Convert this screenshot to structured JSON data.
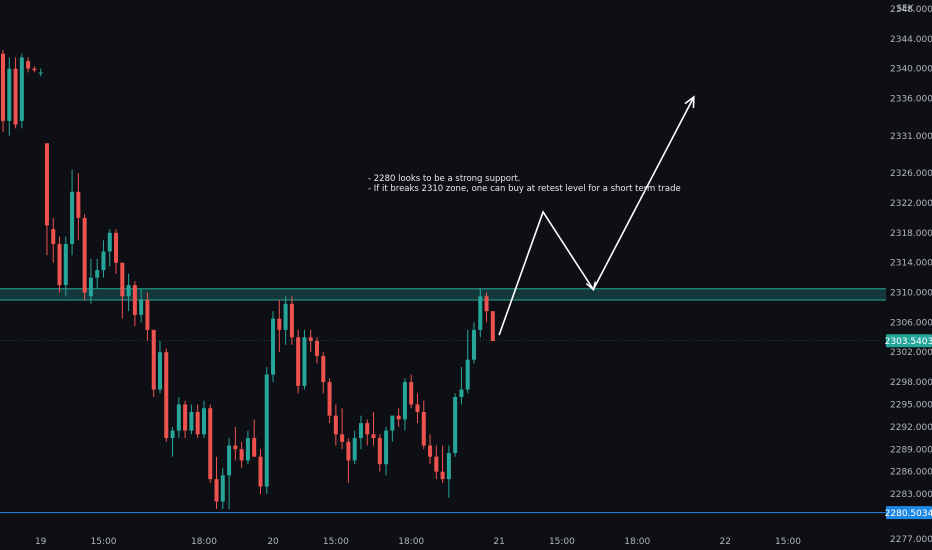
{
  "chart_data": {
    "type": "candlestick",
    "currency": "SEK",
    "colors": {
      "background": "#0d0f14",
      "up": "#26a69a",
      "down": "#ef5350",
      "zone": "#26a69a",
      "support_line": "#1e88e5",
      "annotation": "#ffffff"
    },
    "y_axis": {
      "range": [
        2275.5,
        2349.2
      ],
      "ticks": [
        "2348.0000",
        "2344.0000",
        "2340.0000",
        "2336.0000",
        "2331.0000",
        "2326.0000",
        "2322.0000",
        "2318.0000",
        "2314.0000",
        "2310.0000",
        "2306.0000",
        "2302.0000",
        "2298.0000",
        "2295.0000",
        "2292.0000",
        "2289.0000",
        "2286.0000",
        "2283.0000",
        "2277.0000"
      ]
    },
    "x_axis": {
      "ticks": [
        {
          "label": "19",
          "bar": 6
        },
        {
          "label": "15:00",
          "bar": 16
        },
        {
          "label": "18:00",
          "bar": 32
        },
        {
          "label": "20",
          "bar": 43
        },
        {
          "label": "15:00",
          "bar": 53
        },
        {
          "label": "18:00",
          "bar": 65
        },
        {
          "label": "21",
          "bar": 79
        },
        {
          "label": "15:00",
          "bar": 89
        },
        {
          "label": "18:00",
          "bar": 101
        },
        {
          "label": "22",
          "bar": 115
        },
        {
          "label": "15:00",
          "bar": 125
        }
      ]
    },
    "price_tags": [
      {
        "value": 2303.5403,
        "label": "2303.5403",
        "color": "#26a69a"
      },
      {
        "value": 2280.5034,
        "label": "2280.5034",
        "color": "#1e88e5"
      }
    ],
    "support_zone": {
      "low": 2309.0,
      "high": 2310.5
    },
    "support_line": 2280.5034,
    "annotation": {
      "lines": [
        "- 2280 looks to be a strong support.",
        "- If it breaks 2310 zone, one can buy at retest level for a short term trade"
      ]
    },
    "projection": [
      {
        "bar": 79,
        "price": 2304.3
      },
      {
        "bar": 86,
        "price": 2320.8
      },
      {
        "bar": 94,
        "price": 2310.4
      },
      {
        "bar": 110,
        "price": 2336.2
      }
    ],
    "candles": [
      [
        2342.0,
        2342.5,
        2331.5,
        2333.0
      ],
      [
        2333.0,
        2341.5,
        2331.0,
        2340.0
      ],
      [
        2340.0,
        2341.5,
        2332.0,
        2332.5
      ],
      [
        2333.0,
        2342.0,
        2332.0,
        2341.5
      ],
      [
        2341.0,
        2341.5,
        2339.5,
        2340.0
      ],
      [
        2340.0,
        2340.3,
        2339.5,
        2339.8
      ],
      [
        2339.5,
        2340.0,
        2339.0,
        2339.5
      ],
      [
        2330.0,
        2330.0,
        2315.0,
        2319.0
      ],
      [
        2318.5,
        2320.0,
        2314.0,
        2316.5
      ],
      [
        2316.5,
        2317.5,
        2310.0,
        2311.0
      ],
      [
        2311.0,
        2317.5,
        2309.5,
        2316.5
      ],
      [
        2316.5,
        2326.5,
        2315.0,
        2323.5
      ],
      [
        2323.5,
        2326.0,
        2317.0,
        2320.0
      ],
      [
        2320.0,
        2320.5,
        2309.0,
        2310.0
      ],
      [
        2309.5,
        2314.5,
        2308.5,
        2312.0
      ],
      [
        2312.0,
        2314.5,
        2310.5,
        2313.0
      ],
      [
        2313.0,
        2317.0,
        2312.0,
        2315.5
      ],
      [
        2315.5,
        2318.5,
        2313.5,
        2318.0
      ],
      [
        2318.0,
        2318.5,
        2312.5,
        2314.0
      ],
      [
        2314.0,
        2314.0,
        2306.5,
        2309.5
      ],
      [
        2309.5,
        2312.5,
        2307.5,
        2311.0
      ],
      [
        2311.0,
        2311.5,
        2305.5,
        2307.0
      ],
      [
        2307.0,
        2310.5,
        2306.0,
        2309.0
      ],
      [
        2309.0,
        2310.0,
        2303.5,
        2305.0
      ],
      [
        2305.0,
        2305.0,
        2296.0,
        2297.0
      ],
      [
        2297.0,
        2303.5,
        2296.5,
        2302.0
      ],
      [
        2302.0,
        2302.5,
        2290.0,
        2290.5
      ],
      [
        2290.5,
        2292.0,
        2288.0,
        2291.5
      ],
      [
        2291.5,
        2296.0,
        2290.5,
        2295.0
      ],
      [
        2295.0,
        2295.5,
        2290.5,
        2291.5
      ],
      [
        2291.5,
        2295.0,
        2291.0,
        2294.0
      ],
      [
        2294.0,
        2295.0,
        2290.5,
        2291.0
      ],
      [
        2291.0,
        2295.5,
        2290.5,
        2294.5
      ],
      [
        2294.5,
        2295.0,
        2284.5,
        2285.0
      ],
      [
        2285.0,
        2288.0,
        2281.0,
        2282.0
      ],
      [
        2282.0,
        2286.5,
        2281.0,
        2285.5
      ],
      [
        2285.5,
        2290.5,
        2281.0,
        2289.5
      ],
      [
        2289.5,
        2292.0,
        2287.5,
        2289.0
      ],
      [
        2289.0,
        2290.0,
        2286.5,
        2287.5
      ],
      [
        2287.5,
        2291.5,
        2287.0,
        2290.5
      ],
      [
        2290.5,
        2293.0,
        2288.0,
        2288.0
      ],
      [
        2288.0,
        2289.0,
        2283.0,
        2284.0
      ],
      [
        2284.0,
        2300.0,
        2283.0,
        2299.0
      ],
      [
        2299.0,
        2307.5,
        2298.0,
        2306.5
      ],
      [
        2306.5,
        2309.0,
        2302.0,
        2305.0
      ],
      [
        2305.0,
        2309.5,
        2303.0,
        2308.5
      ],
      [
        2308.5,
        2309.5,
        2303.0,
        2304.0
      ],
      [
        2304.0,
        2305.0,
        2296.5,
        2297.5
      ],
      [
        2297.5,
        2305.0,
        2297.0,
        2304.0
      ],
      [
        2304.0,
        2305.0,
        2302.0,
        2303.5
      ],
      [
        2303.5,
        2304.0,
        2300.5,
        2301.5
      ],
      [
        2301.5,
        2302.0,
        2296.5,
        2298.0
      ],
      [
        2298.0,
        2298.5,
        2292.5,
        2293.5
      ],
      [
        2293.5,
        2295.0,
        2289.5,
        2291.0
      ],
      [
        2291.0,
        2294.5,
        2289.0,
        2290.0
      ],
      [
        2290.0,
        2290.5,
        2284.5,
        2287.5
      ],
      [
        2287.5,
        2291.5,
        2287.0,
        2290.5
      ],
      [
        2290.5,
        2293.5,
        2289.0,
        2292.5
      ],
      [
        2292.5,
        2293.0,
        2289.5,
        2291.0
      ],
      [
        2291.0,
        2294.0,
        2289.5,
        2290.5
      ],
      [
        2290.5,
        2291.0,
        2286.0,
        2287.0
      ],
      [
        2287.0,
        2292.0,
        2285.5,
        2291.5
      ],
      [
        2291.5,
        2293.5,
        2290.0,
        2293.5
      ],
      [
        2293.5,
        2294.5,
        2292.0,
        2293.0
      ],
      [
        2293.0,
        2298.5,
        2291.5,
        2298.0
      ],
      [
        2298.0,
        2299.0,
        2294.5,
        2295.0
      ],
      [
        2295.0,
        2296.5,
        2292.5,
        2294.0
      ],
      [
        2294.0,
        2295.5,
        2289.0,
        2289.5
      ],
      [
        2289.5,
        2291.0,
        2287.0,
        2288.0
      ],
      [
        2288.0,
        2289.5,
        2285.0,
        2286.0
      ],
      [
        2286.0,
        2289.5,
        2284.5,
        2285.0
      ],
      [
        2285.0,
        2289.5,
        2282.5,
        2288.5
      ],
      [
        2288.5,
        2296.5,
        2288.0,
        2296.0
      ],
      [
        2296.0,
        2300.0,
        2295.0,
        2297.0
      ],
      [
        2297.0,
        2305.0,
        2296.5,
        2301.0
      ],
      [
        2301.0,
        2306.0,
        2300.5,
        2305.0
      ],
      [
        2305.0,
        2310.5,
        2304.0,
        2309.5
      ],
      [
        2309.5,
        2310.0,
        2306.0,
        2307.5
      ],
      [
        2307.5,
        2307.5,
        2303.5,
        2303.5
      ]
    ]
  }
}
